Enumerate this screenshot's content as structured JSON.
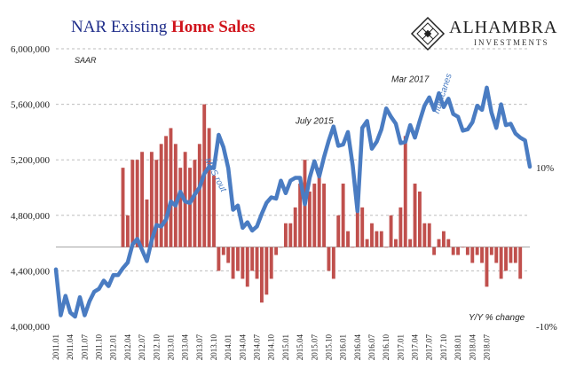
{
  "header": {
    "title_part1": "NAR Existing ",
    "title_part2": "Home Sales",
    "brand_name": "ALHAMBRA",
    "brand_sub": "INVESTMENTS"
  },
  "chart_data": {
    "type": "bar",
    "title": "NAR Existing Home Sales",
    "note": "SAAR",
    "right_axis_label": "Y/Y % change",
    "x_tick_labels": [
      "2011.01",
      "2011.04",
      "2011.07",
      "2011.10",
      "2012.01",
      "2012.04",
      "2012.07",
      "2012.10",
      "2013.01",
      "2013.04",
      "2013.07",
      "2013.10",
      "2014.01",
      "2014.04",
      "2014.07",
      "2014.10",
      "2015.01",
      "2015.04",
      "2015.07",
      "2015.10",
      "2016.01",
      "2016.04",
      "2016.07",
      "2016.10",
      "2017.01",
      "2017.04",
      "2017.07",
      "2017.10",
      "2018.01",
      "2018.04",
      "2018.07"
    ],
    "left_axis": {
      "ylim": [
        4000000,
        6000000
      ],
      "ticks": [
        4000000,
        4400000,
        4800000,
        5200000,
        5600000,
        6000000
      ],
      "tick_labels": [
        "4,000,000",
        "4,400,000",
        "4,800,000",
        "5,200,000",
        "5,600,000",
        "6,000,000"
      ],
      "grid": true
    },
    "right_axis": {
      "ylim": [
        -10,
        25
      ],
      "ticks": [
        10,
        -10
      ],
      "tick_labels": [
        "10%",
        "-10%"
      ]
    },
    "annotations": [
      {
        "text": "MBS rout",
        "month": "2013.08",
        "value": 5200000
      },
      {
        "text": "July 2015",
        "month": "2015.07",
        "value": 5460000
      },
      {
        "text": "Mar 2017",
        "month": "2017.03",
        "value": 5760000
      },
      {
        "text": "hurricanes",
        "month": "2017.09",
        "value": 5530000
      }
    ],
    "series": [
      {
        "name": "Existing Home Sales (SAAR)",
        "type": "line",
        "axis": "left",
        "color": "#4a7cc2",
        "start": "2011.01",
        "values": [
          4410000,
          4080000,
          4220000,
          4100000,
          4070000,
          4210000,
          4080000,
          4180000,
          4250000,
          4270000,
          4330000,
          4290000,
          4370000,
          4370000,
          4420000,
          4460000,
          4590000,
          4630000,
          4550000,
          4470000,
          4620000,
          4730000,
          4720000,
          4770000,
          4900000,
          4870000,
          4970000,
          4900000,
          4890000,
          4950000,
          5000000,
          5100000,
          5150000,
          5140000,
          5380000,
          5290000,
          5140000,
          4840000,
          4870000,
          4710000,
          4750000,
          4690000,
          4720000,
          4810000,
          4890000,
          4930000,
          4920000,
          5050000,
          4960000,
          5050000,
          5070000,
          5070000,
          4880000,
          5070000,
          5190000,
          5080000,
          5220000,
          5340000,
          5440000,
          5300000,
          5310000,
          5400000,
          5160000,
          4830000,
          5430000,
          5480000,
          5280000,
          5330000,
          5420000,
          5570000,
          5510000,
          5460000,
          5320000,
          5330000,
          5450000,
          5360000,
          5480000,
          5590000,
          5650000,
          5560000,
          5680000,
          5580000,
          5640000,
          5530000,
          5510000,
          5410000,
          5420000,
          5470000,
          5590000,
          5560000,
          5720000,
          5540000,
          5430000,
          5600000,
          5450000,
          5460000,
          5390000,
          5360000,
          5340000,
          5150000
        ]
      },
      {
        "name": "Y/Y % change",
        "type": "bar",
        "axis": "right",
        "color": "#c0504d",
        "start": "2012.03",
        "values": [
          10,
          4,
          11,
          11,
          12,
          6,
          12,
          11,
          13,
          14,
          15,
          13,
          10,
          12,
          10,
          11,
          13,
          18,
          15,
          9,
          -3,
          -1,
          -2,
          -4,
          -3,
          -4,
          -5,
          -3,
          -4,
          -7,
          -6,
          -4,
          -1,
          0,
          3,
          3,
          5,
          8,
          11,
          7,
          8,
          10,
          8,
          -3,
          -4,
          4,
          8,
          2,
          0,
          6,
          5,
          1,
          3,
          2,
          2,
          0,
          4,
          1,
          5,
          14,
          1,
          8,
          7,
          3,
          3,
          -1,
          1,
          2,
          1,
          -1,
          -1,
          0,
          -1,
          -2,
          -1,
          -2,
          -5,
          -1,
          -2,
          -4,
          -3,
          -2,
          -2,
          -4
        ]
      }
    ]
  }
}
